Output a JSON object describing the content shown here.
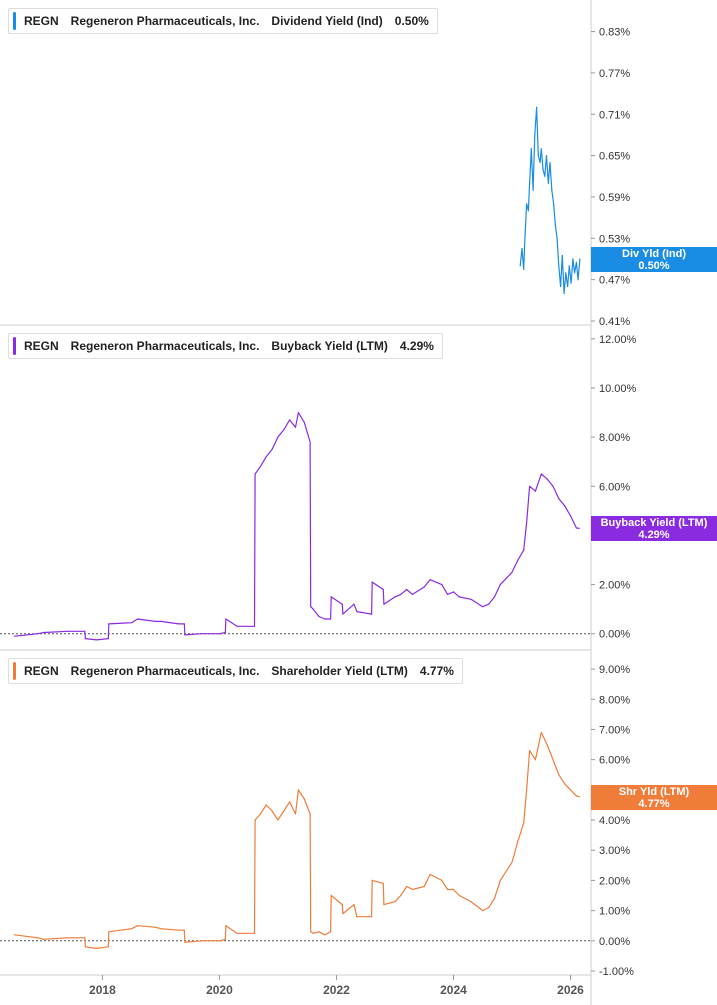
{
  "chart_data": [
    {
      "type": "line",
      "ticker": "REGN",
      "company": "Regeneron Pharmaceuticals, Inc.",
      "metric": "Dividend Yield (Ind)",
      "current_value": "0.50%",
      "tag_label": "Div Yld (Ind)",
      "tag_value": "0.50%",
      "color": "#1a8ce3",
      "ylim": [
        0.41,
        0.87
      ],
      "yticks": [
        0.41,
        0.47,
        0.53,
        0.59,
        0.65,
        0.71,
        0.77,
        0.83
      ],
      "ytick_labels": [
        "0.41%",
        "0.47%",
        "0.53%",
        "0.59%",
        "0.65%",
        "0.71%",
        "0.77%",
        "0.83%"
      ],
      "x": [
        2025.14,
        2025.17,
        2025.2,
        2025.22,
        2025.25,
        2025.28,
        2025.3,
        2025.33,
        2025.36,
        2025.39,
        2025.42,
        2025.45,
        2025.48,
        2025.5,
        2025.53,
        2025.56,
        2025.59,
        2025.62,
        2025.65,
        2025.68,
        2025.71,
        2025.74,
        2025.77,
        2025.8,
        2025.83,
        2025.86,
        2025.89,
        2025.92,
        2025.95,
        2025.98,
        2026.01,
        2026.04,
        2026.07,
        2026.1,
        2026.13,
        2026.16
      ],
      "values": [
        0.49,
        0.515,
        0.485,
        0.53,
        0.58,
        0.57,
        0.61,
        0.66,
        0.6,
        0.68,
        0.72,
        0.65,
        0.64,
        0.66,
        0.63,
        0.62,
        0.65,
        0.61,
        0.64,
        0.6,
        0.58,
        0.55,
        0.53,
        0.49,
        0.46,
        0.505,
        0.45,
        0.48,
        0.46,
        0.49,
        0.465,
        0.5,
        0.48,
        0.495,
        0.47,
        0.5
      ],
      "grid": false,
      "legend_position": "top-left"
    },
    {
      "type": "line",
      "ticker": "REGN",
      "company": "Regeneron Pharmaceuticals, Inc.",
      "metric": "Buyback Yield (LTM)",
      "current_value": "4.29%",
      "tag_label": "Buyback Yield (LTM)",
      "tag_value": "4.29%",
      "color": "#8a2be2",
      "ylim": [
        -0.5,
        12.4
      ],
      "yticks": [
        0,
        2,
        4,
        6,
        8,
        10,
        12
      ],
      "ytick_labels": [
        "0.00%",
        "2.00%",
        "4.00%",
        "6.00%",
        "8.00%",
        "10.00%",
        "12.00%"
      ],
      "zero_line": 0,
      "x": [
        2016.5,
        2016.9,
        2017.0,
        2017.4,
        2017.7,
        2017.71,
        2017.9,
        2018.1,
        2018.11,
        2018.5,
        2018.6,
        2018.9,
        2019.0,
        2019.3,
        2019.4,
        2019.41,
        2019.7,
        2020.0,
        2020.1,
        2020.11,
        2020.3,
        2020.6,
        2020.61,
        2020.7,
        2020.8,
        2020.9,
        2021.0,
        2021.1,
        2021.2,
        2021.3,
        2021.35,
        2021.45,
        2021.55,
        2021.56,
        2021.6,
        2021.7,
        2021.8,
        2021.9,
        2021.91,
        2022.1,
        2022.11,
        2022.3,
        2022.35,
        2022.6,
        2022.61,
        2022.8,
        2022.81,
        2023.0,
        2023.1,
        2023.2,
        2023.3,
        2023.5,
        2023.6,
        2023.8,
        2023.9,
        2024.0,
        2024.1,
        2024.3,
        2024.5,
        2024.6,
        2024.7,
        2024.8,
        2025.0,
        2025.1,
        2025.2,
        2025.25,
        2025.3,
        2025.4,
        2025.5,
        2025.6,
        2025.7,
        2025.8,
        2025.9,
        2026.0,
        2026.1,
        2026.15
      ],
      "values": [
        -0.1,
        0.0,
        0.05,
        0.1,
        0.1,
        -0.2,
        -0.25,
        -0.2,
        0.4,
        0.45,
        0.6,
        0.5,
        0.5,
        0.4,
        0.4,
        -0.05,
        0.0,
        0.0,
        0.05,
        0.6,
        0.3,
        0.3,
        6.5,
        6.8,
        7.2,
        7.5,
        8.0,
        8.3,
        8.7,
        8.4,
        9.0,
        8.6,
        7.8,
        1.1,
        1.0,
        0.7,
        0.6,
        0.6,
        1.5,
        1.2,
        0.8,
        1.2,
        0.9,
        0.8,
        2.1,
        1.8,
        1.2,
        1.5,
        1.6,
        1.8,
        1.6,
        1.9,
        2.2,
        2.0,
        1.6,
        1.7,
        1.5,
        1.4,
        1.1,
        1.2,
        1.5,
        2.0,
        2.5,
        3.0,
        3.4,
        4.5,
        6.0,
        5.8,
        6.5,
        6.3,
        6.0,
        5.5,
        5.2,
        4.8,
        4.3,
        4.29
      ],
      "grid": false,
      "legend_position": "top-left"
    },
    {
      "type": "line",
      "ticker": "REGN",
      "company": "Regeneron Pharmaceuticals, Inc.",
      "metric": "Shareholder Yield (LTM)",
      "current_value": "4.77%",
      "tag_label": "Shr Yld (LTM)",
      "tag_value": "4.77%",
      "color": "#f07c3a",
      "ylim": [
        -1.0,
        9.5
      ],
      "yticks": [
        -1,
        0,
        1,
        2,
        3,
        4,
        5,
        6,
        7,
        8,
        9
      ],
      "ytick_labels": [
        "-1.00%",
        "0.00%",
        "1.00%",
        "2.00%",
        "3.00%",
        "4.00%",
        "5.00%",
        "6.00%",
        "7.00%",
        "8.00%",
        "9.00%"
      ],
      "zero_line": 0,
      "x": [
        2016.5,
        2016.9,
        2017.0,
        2017.4,
        2017.7,
        2017.71,
        2017.9,
        2018.1,
        2018.11,
        2018.5,
        2018.6,
        2018.9,
        2019.0,
        2019.3,
        2019.4,
        2019.41,
        2019.7,
        2020.0,
        2020.1,
        2020.11,
        2020.3,
        2020.6,
        2020.61,
        2020.7,
        2020.8,
        2020.9,
        2021.0,
        2021.1,
        2021.2,
        2021.3,
        2021.35,
        2021.45,
        2021.55,
        2021.56,
        2021.6,
        2021.7,
        2021.8,
        2021.9,
        2021.91,
        2022.1,
        2022.11,
        2022.3,
        2022.35,
        2022.6,
        2022.61,
        2022.8,
        2022.81,
        2023.0,
        2023.1,
        2023.2,
        2023.3,
        2023.5,
        2023.6,
        2023.8,
        2023.9,
        2024.0,
        2024.1,
        2024.3,
        2024.5,
        2024.6,
        2024.7,
        2024.8,
        2025.0,
        2025.1,
        2025.2,
        2025.25,
        2025.3,
        2025.4,
        2025.5,
        2025.6,
        2025.7,
        2025.8,
        2025.9,
        2026.0,
        2026.1,
        2026.15
      ],
      "values": [
        0.2,
        0.1,
        0.05,
        0.1,
        0.1,
        -0.2,
        -0.25,
        -0.2,
        0.3,
        0.4,
        0.5,
        0.45,
        0.4,
        0.35,
        0.35,
        -0.05,
        0.0,
        0.0,
        0.05,
        0.5,
        0.25,
        0.25,
        4.0,
        4.2,
        4.5,
        4.3,
        4.0,
        4.3,
        4.6,
        4.2,
        5.0,
        4.7,
        4.2,
        0.3,
        0.25,
        0.3,
        0.2,
        0.3,
        1.5,
        1.2,
        0.9,
        1.2,
        0.8,
        0.8,
        2.0,
        1.9,
        1.2,
        1.3,
        1.5,
        1.8,
        1.7,
        1.8,
        2.2,
        2.0,
        1.7,
        1.7,
        1.5,
        1.3,
        1.0,
        1.1,
        1.4,
        2.0,
        2.6,
        3.3,
        3.9,
        5.0,
        6.3,
        6.0,
        6.9,
        6.5,
        6.0,
        5.5,
        5.2,
        5.0,
        4.8,
        4.77
      ],
      "grid": false,
      "legend_position": "top-left"
    }
  ],
  "x_axis": {
    "xlim": [
      2016.25,
      2026.35
    ],
    "ticks": [
      2018,
      2020,
      2022,
      2024,
      2026
    ],
    "tick_labels": [
      "2018",
      "2020",
      "2022",
      "2024",
      "2026"
    ]
  }
}
